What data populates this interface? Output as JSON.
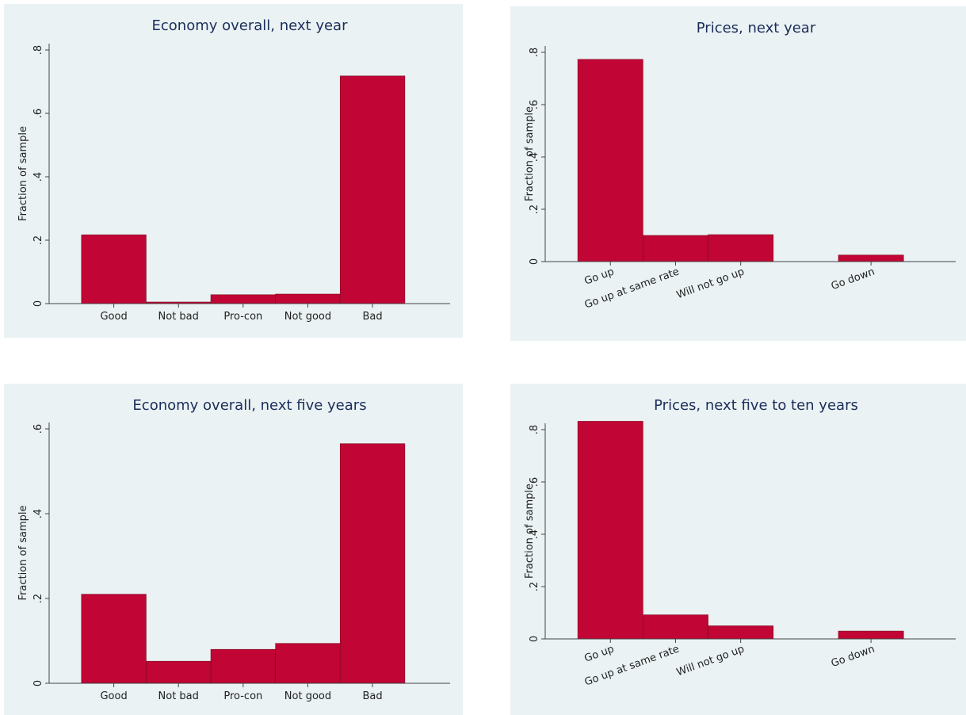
{
  "colors": {
    "panel_bg": "#eaf2f3",
    "bar_fill": "#c10534",
    "bar_edge": "#7a0a22",
    "axis": "#444444"
  },
  "chart_data": [
    {
      "type": "bar",
      "title": "Economy overall, next year",
      "ylabel": "Fraction of sample",
      "categories": [
        "Good",
        "Not bad",
        "Pro-con",
        "Not good",
        "Bad"
      ],
      "category_positions": [
        1,
        2,
        3,
        4,
        5
      ],
      "values": [
        0.217,
        0.005,
        0.028,
        0.03,
        0.718
      ],
      "ylim": [
        0,
        0.8
      ],
      "yticks": [
        {
          "value": 0,
          "label": "0"
        },
        {
          "value": 0.2,
          "label": ".2"
        },
        {
          "value": 0.4,
          "label": ".4"
        },
        {
          "value": 0.6,
          "label": ".6"
        },
        {
          "value": 0.8,
          "label": ".8"
        }
      ],
      "xlabel_rotation": 0,
      "grid": false,
      "legend": "none"
    },
    {
      "type": "bar",
      "title": "Prices, next year",
      "ylabel": "Fraction of sample",
      "categories": [
        "Go up",
        "Go up at same rate",
        "Will not go up",
        "Go down"
      ],
      "category_positions": [
        1,
        2,
        3,
        5
      ],
      "values": [
        0.773,
        0.1,
        0.103,
        0.025
      ],
      "ylim": [
        0,
        0.8
      ],
      "yticks": [
        {
          "value": 0,
          "label": "0"
        },
        {
          "value": 0.2,
          "label": ".2"
        },
        {
          "value": 0.4,
          "label": ".4"
        },
        {
          "value": 0.6,
          "label": ".6"
        },
        {
          "value": 0.8,
          "label": ".8"
        }
      ],
      "xlabel_rotation": -20,
      "grid": false,
      "legend": "none"
    },
    {
      "type": "bar",
      "title": "Economy overall, next five years",
      "ylabel": "Fraction of sample",
      "categories": [
        "Good",
        "Not bad",
        "Pro-con",
        "Not good",
        "Bad"
      ],
      "category_positions": [
        1,
        2,
        3,
        4,
        5
      ],
      "values": [
        0.21,
        0.052,
        0.08,
        0.094,
        0.565
      ],
      "ylim": [
        0,
        0.6
      ],
      "yticks": [
        {
          "value": 0,
          "label": "0"
        },
        {
          "value": 0.2,
          "label": ".2"
        },
        {
          "value": 0.4,
          "label": ".4"
        },
        {
          "value": 0.6,
          "label": ".6"
        }
      ],
      "xlabel_rotation": 0,
      "grid": false,
      "legend": "none"
    },
    {
      "type": "bar",
      "title": "Prices, next five to ten years",
      "ylabel": "Fraction of sample",
      "categories": [
        "Go up",
        "Go up at same rate",
        "Will not go up",
        "Go down"
      ],
      "category_positions": [
        1,
        2,
        3,
        5
      ],
      "values": [
        0.832,
        0.092,
        0.05,
        0.03
      ],
      "ylim": [
        0,
        0.8
      ],
      "yticks": [
        {
          "value": 0,
          "label": "0"
        },
        {
          "value": 0.2,
          "label": ".2"
        },
        {
          "value": 0.4,
          "label": ".4"
        },
        {
          "value": 0.6,
          "label": ".6"
        },
        {
          "value": 0.8,
          "label": ".8"
        }
      ],
      "xlabel_rotation": -20,
      "grid": false,
      "legend": "none"
    }
  ]
}
